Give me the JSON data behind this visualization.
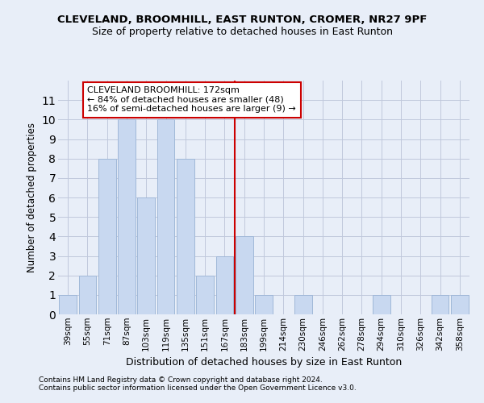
{
  "title1": "CLEVELAND, BROOMHILL, EAST RUNTON, CROMER, NR27 9PF",
  "title2": "Size of property relative to detached houses in East Runton",
  "xlabel": "Distribution of detached houses by size in East Runton",
  "ylabel": "Number of detached properties",
  "categories": [
    "39sqm",
    "55sqm",
    "71sqm",
    "87sqm",
    "103sqm",
    "119sqm",
    "135sqm",
    "151sqm",
    "167sqm",
    "183sqm",
    "199sqm",
    "214sqm",
    "230sqm",
    "246sqm",
    "262sqm",
    "278sqm",
    "294sqm",
    "310sqm",
    "326sqm",
    "342sqm",
    "358sqm"
  ],
  "values": [
    1,
    2,
    8,
    10,
    6,
    10,
    8,
    2,
    3,
    4,
    1,
    0,
    1,
    0,
    0,
    0,
    1,
    0,
    0,
    1,
    1
  ],
  "bar_color": "#c8d8f0",
  "bar_edgecolor": "#a0b8d8",
  "vline_x": 8.5,
  "vline_color": "#cc0000",
  "annotation_text": "CLEVELAND BROOMHILL: 172sqm\n← 84% of detached houses are smaller (48)\n16% of semi-detached houses are larger (9) →",
  "annotation_box_color": "#ffffff",
  "annotation_box_edgecolor": "#cc0000",
  "ylim": [
    0,
    12
  ],
  "yticks": [
    0,
    1,
    2,
    3,
    4,
    5,
    6,
    7,
    8,
    9,
    10,
    11,
    12
  ],
  "footer1": "Contains HM Land Registry data © Crown copyright and database right 2024.",
  "footer2": "Contains public sector information licensed under the Open Government Licence v3.0.",
  "background_color": "#e8eef8",
  "grid_color": "#c0c8dc"
}
